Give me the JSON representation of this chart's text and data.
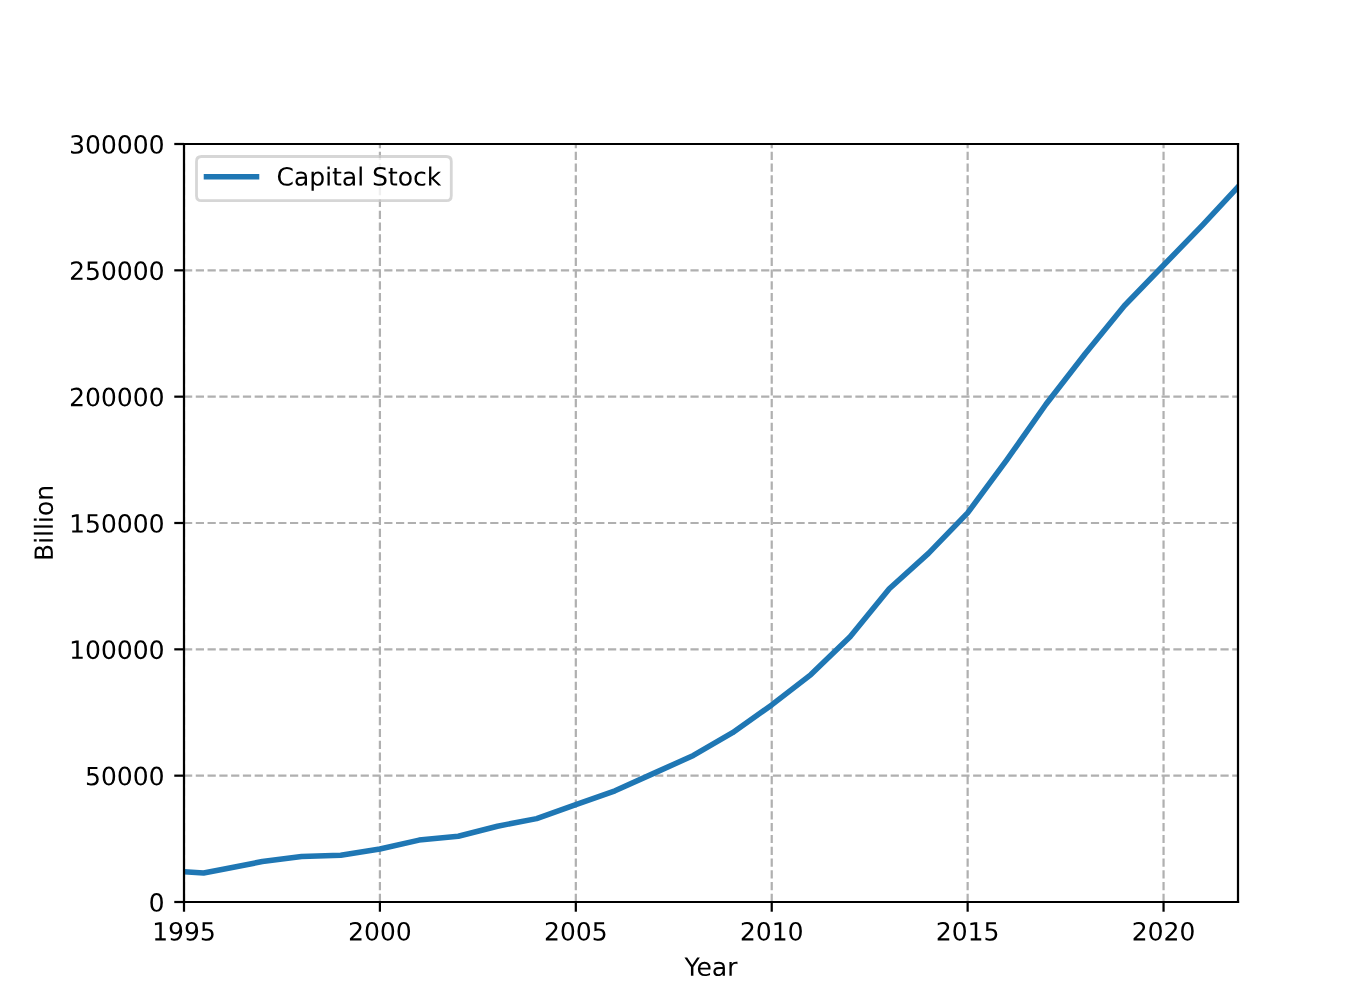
{
  "chart_data": {
    "type": "line",
    "xlabel": "Year",
    "ylabel": "Billion",
    "x": [
      1995,
      1995.5,
      1996,
      1997,
      1998,
      1999,
      2000,
      2001,
      2002,
      2003,
      2004,
      2005,
      2006,
      2007,
      2008,
      2009,
      2010,
      2011,
      2012,
      2013,
      2014,
      2015,
      2016,
      2017,
      2018,
      2019,
      2020,
      2021,
      2021.9
    ],
    "series": [
      {
        "name": "Capital Stock",
        "color": "#1f77b4",
        "values": [
          12000,
          11500,
          13000,
          16000,
          18000,
          18500,
          21000,
          24500,
          26000,
          30000,
          33000,
          38500,
          44000,
          51000,
          58000,
          67000,
          78000,
          90000,
          105000,
          124000,
          138000,
          154000,
          175000,
          197000,
          217000,
          236000,
          252000,
          268000,
          283000
        ]
      }
    ],
    "xlim": [
      1995,
      2021.9
    ],
    "xticks": [
      1995,
      2000,
      2005,
      2010,
      2015,
      2020
    ],
    "ylim": [
      0,
      300000
    ],
    "yticks": [
      0,
      50000,
      100000,
      150000,
      200000,
      250000,
      300000
    ],
    "grid": true,
    "legend": "top left",
    "line_style": "solid",
    "marker": "none"
  }
}
